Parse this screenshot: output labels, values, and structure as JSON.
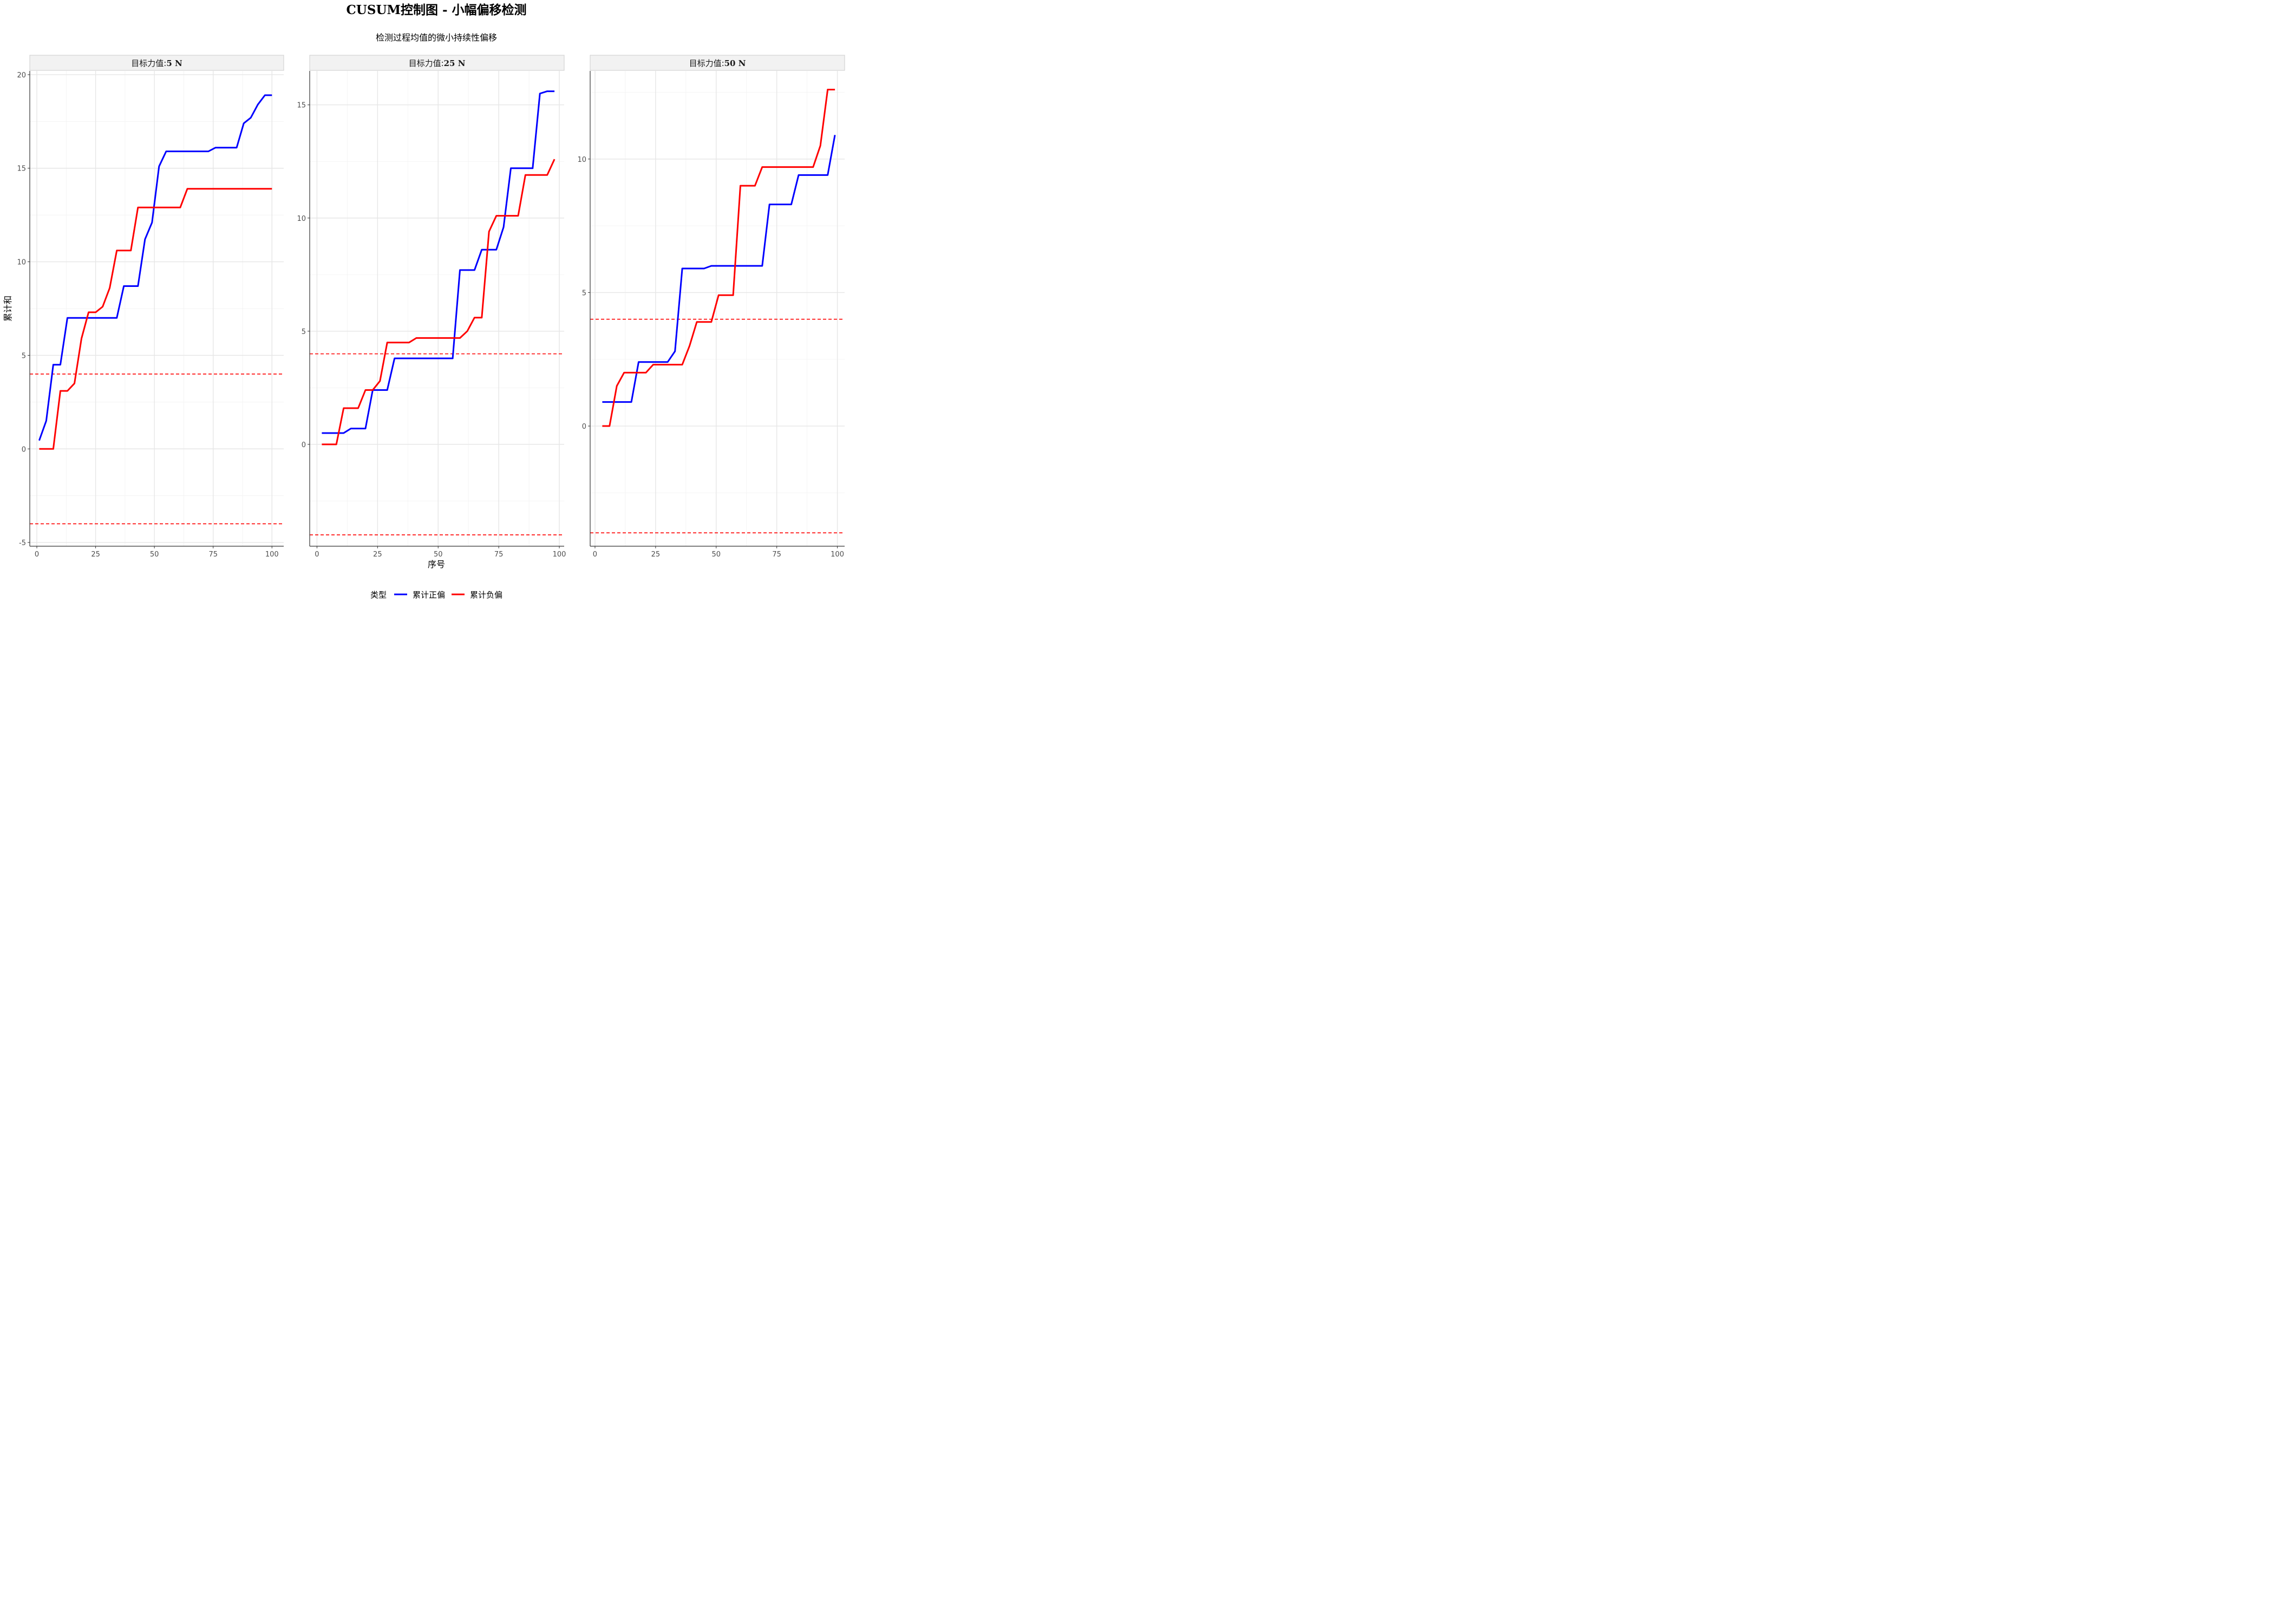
{
  "title": "CUSUM控制图 - 小幅偏移检测",
  "subtitle": "检测过程均值的微小持续性偏移",
  "chart_data": {
    "type": "line",
    "title": "CUSUM控制图 - 小幅偏移检测",
    "subtitle": "检测过程均值的微小持续性偏移",
    "xlabel": "序号",
    "ylabel": "累计和",
    "legend": {
      "title": "类型",
      "placement": "bottom",
      "entries": [
        {
          "name": "累计正偏",
          "color": "#0000FF"
        },
        {
          "name": "累计负偏",
          "color": "#FF0000"
        }
      ]
    },
    "control_limits": {
      "upper": 4,
      "lower": -4,
      "color": "#FF0000",
      "style": "dashed"
    },
    "grid": true,
    "panels": [
      {
        "strip_label": "目标力值:",
        "strip_value": "5 N",
        "xlim": [
          -3,
          105
        ],
        "ylim": [
          -5.2,
          20.2
        ],
        "xticks": [
          0,
          25,
          50,
          75,
          100
        ],
        "yticks": [
          -5,
          0,
          5,
          10,
          15,
          20
        ],
        "series": [
          {
            "name": "累计正偏",
            "color": "#0000FF",
            "points": [
              [
                1,
                0.45
              ],
              [
                4,
                1.5
              ],
              [
                7,
                4.5
              ],
              [
                10,
                4.5
              ],
              [
                13,
                7.0
              ],
              [
                16,
                7.0
              ],
              [
                19,
                7.0
              ],
              [
                22,
                7.0
              ],
              [
                25,
                7.0
              ],
              [
                28,
                7.0
              ],
              [
                31,
                7.0
              ],
              [
                34,
                7.0
              ],
              [
                37,
                8.7
              ],
              [
                40,
                8.7
              ],
              [
                43,
                8.7
              ],
              [
                46,
                11.2
              ],
              [
                49,
                12.1
              ],
              [
                52,
                15.1
              ],
              [
                55,
                15.9
              ],
              [
                58,
                15.9
              ],
              [
                61,
                15.9
              ],
              [
                64,
                15.9
              ],
              [
                67,
                15.9
              ],
              [
                70,
                15.9
              ],
              [
                73,
                15.9
              ],
              [
                76,
                16.1
              ],
              [
                79,
                16.1
              ],
              [
                82,
                16.1
              ],
              [
                85,
                16.1
              ],
              [
                88,
                17.4
              ],
              [
                91,
                17.7
              ],
              [
                94,
                18.4
              ],
              [
                97,
                18.9
              ],
              [
                100,
                18.9
              ]
            ]
          },
          {
            "name": "累计负偏",
            "color": "#FF0000",
            "points": [
              [
                1,
                0
              ],
              [
                4,
                0
              ],
              [
                7,
                0
              ],
              [
                10,
                3.1
              ],
              [
                13,
                3.1
              ],
              [
                16,
                3.5
              ],
              [
                19,
                5.9
              ],
              [
                22,
                7.3
              ],
              [
                25,
                7.3
              ],
              [
                28,
                7.6
              ],
              [
                31,
                8.6
              ],
              [
                34,
                10.6
              ],
              [
                37,
                10.6
              ],
              [
                40,
                10.6
              ],
              [
                43,
                12.9
              ],
              [
                46,
                12.9
              ],
              [
                49,
                12.9
              ],
              [
                52,
                12.9
              ],
              [
                55,
                12.9
              ],
              [
                58,
                12.9
              ],
              [
                61,
                12.9
              ],
              [
                64,
                13.9
              ],
              [
                67,
                13.9
              ],
              [
                70,
                13.9
              ],
              [
                73,
                13.9
              ],
              [
                76,
                13.9
              ],
              [
                79,
                13.9
              ],
              [
                82,
                13.9
              ],
              [
                85,
                13.9
              ],
              [
                88,
                13.9
              ],
              [
                91,
                13.9
              ],
              [
                94,
                13.9
              ],
              [
                97,
                13.9
              ],
              [
                100,
                13.9
              ]
            ]
          }
        ]
      },
      {
        "strip_label": "目标力值:",
        "strip_value": "25 N",
        "xlim": [
          -3,
          102
        ],
        "ylim": [
          -4.5,
          16.5
        ],
        "xticks": [
          0,
          25,
          50,
          75,
          100
        ],
        "yticks": [
          0,
          5,
          10,
          15
        ],
        "series": [
          {
            "name": "累计正偏",
            "color": "#0000FF",
            "points": [
              [
                2,
                0.5
              ],
              [
                5,
                0.5
              ],
              [
                8,
                0.5
              ],
              [
                11,
                0.5
              ],
              [
                14,
                0.7
              ],
              [
                17,
                0.7
              ],
              [
                20,
                0.7
              ],
              [
                23,
                2.4
              ],
              [
                26,
                2.4
              ],
              [
                29,
                2.4
              ],
              [
                32,
                3.8
              ],
              [
                35,
                3.8
              ],
              [
                38,
                3.8
              ],
              [
                41,
                3.8
              ],
              [
                44,
                3.8
              ],
              [
                47,
                3.8
              ],
              [
                50,
                3.8
              ],
              [
                53,
                3.8
              ],
              [
                56,
                3.8
              ],
              [
                59,
                7.7
              ],
              [
                62,
                7.7
              ],
              [
                65,
                7.7
              ],
              [
                68,
                8.6
              ],
              [
                71,
                8.6
              ],
              [
                74,
                8.6
              ],
              [
                77,
                9.6
              ],
              [
                80,
                12.2
              ],
              [
                83,
                12.2
              ],
              [
                86,
                12.2
              ],
              [
                89,
                12.2
              ],
              [
                92,
                15.5
              ],
              [
                95,
                15.6
              ],
              [
                98,
                15.6
              ]
            ]
          },
          {
            "name": "累计负偏",
            "color": "#FF0000",
            "points": [
              [
                2,
                0
              ],
              [
                5,
                0
              ],
              [
                8,
                0
              ],
              [
                11,
                1.6
              ],
              [
                14,
                1.6
              ],
              [
                17,
                1.6
              ],
              [
                20,
                2.4
              ],
              [
                23,
                2.4
              ],
              [
                26,
                2.8
              ],
              [
                29,
                4.5
              ],
              [
                32,
                4.5
              ],
              [
                35,
                4.5
              ],
              [
                38,
                4.5
              ],
              [
                41,
                4.7
              ],
              [
                44,
                4.7
              ],
              [
                47,
                4.7
              ],
              [
                50,
                4.7
              ],
              [
                53,
                4.7
              ],
              [
                56,
                4.7
              ],
              [
                59,
                4.7
              ],
              [
                62,
                5.0
              ],
              [
                65,
                5.6
              ],
              [
                68,
                5.6
              ],
              [
                71,
                9.4
              ],
              [
                74,
                10.1
              ],
              [
                77,
                10.1
              ],
              [
                80,
                10.1
              ],
              [
                83,
                10.1
              ],
              [
                86,
                11.9
              ],
              [
                89,
                11.9
              ],
              [
                92,
                11.9
              ],
              [
                95,
                11.9
              ],
              [
                98,
                12.6
              ]
            ]
          }
        ]
      },
      {
        "strip_label": "目标力值:",
        "strip_value": "50 N",
        "xlim": [
          -2,
          103
        ],
        "ylim": [
          -4.5,
          13.3
        ],
        "xticks": [
          0,
          25,
          50,
          75,
          100
        ],
        "yticks": [
          0,
          5,
          10
        ],
        "series": [
          {
            "name": "累计正偏",
            "color": "#0000FF",
            "points": [
              [
                3,
                0.9
              ],
              [
                6,
                0.9
              ],
              [
                9,
                0.9
              ],
              [
                12,
                0.9
              ],
              [
                15,
                0.9
              ],
              [
                18,
                2.4
              ],
              [
                21,
                2.4
              ],
              [
                24,
                2.4
              ],
              [
                27,
                2.4
              ],
              [
                30,
                2.4
              ],
              [
                33,
                2.8
              ],
              [
                36,
                5.9
              ],
              [
                39,
                5.9
              ],
              [
                42,
                5.9
              ],
              [
                45,
                5.9
              ],
              [
                48,
                6.0
              ],
              [
                51,
                6.0
              ],
              [
                54,
                6.0
              ],
              [
                57,
                6.0
              ],
              [
                60,
                6.0
              ],
              [
                63,
                6.0
              ],
              [
                66,
                6.0
              ],
              [
                69,
                6.0
              ],
              [
                72,
                8.3
              ],
              [
                75,
                8.3
              ],
              [
                78,
                8.3
              ],
              [
                81,
                8.3
              ],
              [
                84,
                9.4
              ],
              [
                87,
                9.4
              ],
              [
                90,
                9.4
              ],
              [
                93,
                9.4
              ],
              [
                96,
                9.4
              ],
              [
                99,
                10.9
              ]
            ]
          },
          {
            "name": "累计负偏",
            "color": "#FF0000",
            "points": [
              [
                3,
                0
              ],
              [
                6,
                0
              ],
              [
                9,
                1.5
              ],
              [
                12,
                2.0
              ],
              [
                15,
                2.0
              ],
              [
                18,
                2.0
              ],
              [
                21,
                2.0
              ],
              [
                24,
                2.3
              ],
              [
                27,
                2.3
              ],
              [
                30,
                2.3
              ],
              [
                33,
                2.3
              ],
              [
                36,
                2.3
              ],
              [
                39,
                3.0
              ],
              [
                42,
                3.9
              ],
              [
                45,
                3.9
              ],
              [
                48,
                3.9
              ],
              [
                51,
                4.9
              ],
              [
                54,
                4.9
              ],
              [
                57,
                4.9
              ],
              [
                60,
                9.0
              ],
              [
                63,
                9.0
              ],
              [
                66,
                9.0
              ],
              [
                69,
                9.7
              ],
              [
                72,
                9.7
              ],
              [
                75,
                9.7
              ],
              [
                78,
                9.7
              ],
              [
                81,
                9.7
              ],
              [
                84,
                9.7
              ],
              [
                87,
                9.7
              ],
              [
                90,
                9.7
              ],
              [
                93,
                10.5
              ],
              [
                96,
                12.6
              ],
              [
                99,
                12.6
              ]
            ]
          }
        ]
      }
    ]
  }
}
